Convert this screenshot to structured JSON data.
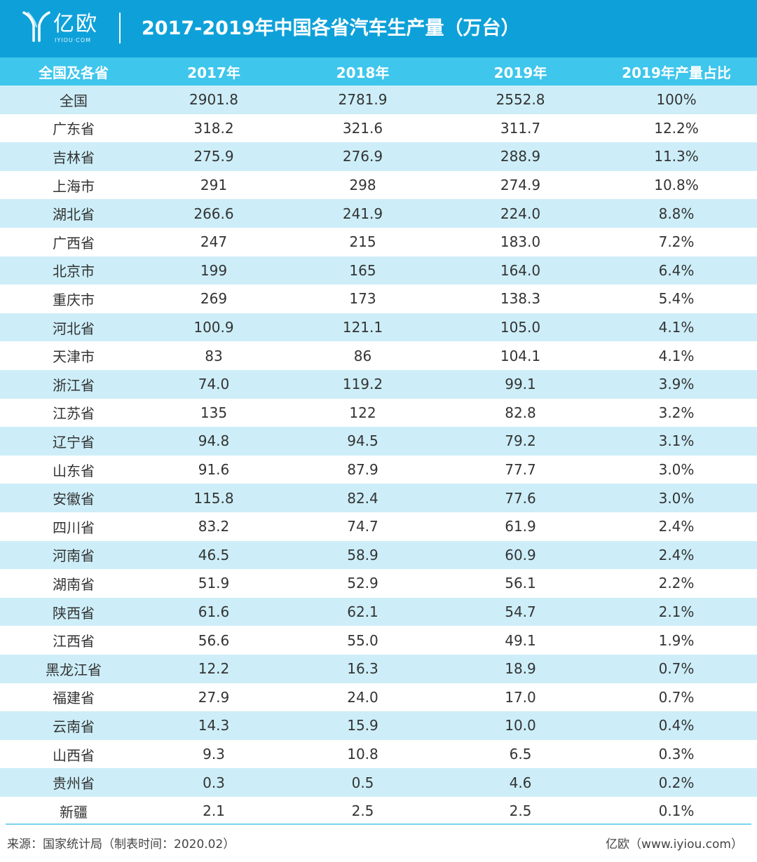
{
  "header": {
    "logo_text": "亿欧",
    "logo_sub": "IYIOU·COM",
    "title": "2017-2019年中国各省汽车生产量（万台）"
  },
  "colors": {
    "header_bg": "#0ea1d9",
    "table_head_bg": "#3ec6ec",
    "row_alt_bg": "#cdeef8"
  },
  "chart_data": {
    "type": "table",
    "title": "2017-2019年中国各省汽车生产量（万台）",
    "columns": [
      "全国及各省",
      "2017年",
      "2018年",
      "2019年",
      "2019年产量占比"
    ],
    "rows": [
      [
        "全国",
        "2901.8",
        "2781.9",
        "2552.8",
        "100%"
      ],
      [
        "广东省",
        "318.2",
        "321.6",
        "311.7",
        "12.2%"
      ],
      [
        "吉林省",
        "275.9",
        "276.9",
        "288.9",
        "11.3%"
      ],
      [
        "上海市",
        "291",
        "298",
        "274.9",
        "10.8%"
      ],
      [
        "湖北省",
        "266.6",
        "241.9",
        "224.0",
        "8.8%"
      ],
      [
        "广西省",
        "247",
        "215",
        "183.0",
        "7.2%"
      ],
      [
        "北京市",
        "199",
        "165",
        "164.0",
        "6.4%"
      ],
      [
        "重庆市",
        "269",
        "173",
        "138.3",
        "5.4%"
      ],
      [
        "河北省",
        "100.9",
        "121.1",
        "105.0",
        "4.1%"
      ],
      [
        "天津市",
        "83",
        "86",
        "104.1",
        "4.1%"
      ],
      [
        "浙江省",
        "74.0",
        "119.2",
        "99.1",
        "3.9%"
      ],
      [
        "江苏省",
        "135",
        "122",
        "82.8",
        "3.2%"
      ],
      [
        "辽宁省",
        "94.8",
        "94.5",
        "79.2",
        "3.1%"
      ],
      [
        "山东省",
        "91.6",
        "87.9",
        "77.7",
        "3.0%"
      ],
      [
        "安徽省",
        "115.8",
        "82.4",
        "77.6",
        "3.0%"
      ],
      [
        "四川省",
        "83.2",
        "74.7",
        "61.9",
        "2.4%"
      ],
      [
        "河南省",
        "46.5",
        "58.9",
        "60.9",
        "2.4%"
      ],
      [
        "湖南省",
        "51.9",
        "52.9",
        "56.1",
        "2.2%"
      ],
      [
        "陕西省",
        "61.6",
        "62.1",
        "54.7",
        "2.1%"
      ],
      [
        "江西省",
        "56.6",
        "55.0",
        "49.1",
        "1.9%"
      ],
      [
        "黑龙江省",
        "12.2",
        "16.3",
        "18.9",
        "0.7%"
      ],
      [
        "福建省",
        "27.9",
        "24.0",
        "17.0",
        "0.7%"
      ],
      [
        "云南省",
        "14.3",
        "15.9",
        "10.0",
        "0.4%"
      ],
      [
        "山西省",
        "9.3",
        "10.8",
        "6.5",
        "0.3%"
      ],
      [
        "贵州省",
        "0.3",
        "0.5",
        "4.6",
        "0.2%"
      ],
      [
        "新疆",
        "2.1",
        "2.5",
        "2.5",
        "0.1%"
      ]
    ]
  },
  "footer": {
    "source": "来源：国家统计局（制表时间：2020.02）",
    "credit": "亿欧（www.iyiou.com）"
  }
}
